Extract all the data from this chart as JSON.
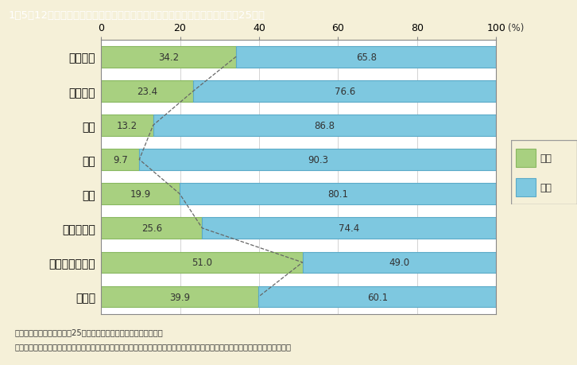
{
  "title": "1－5－12図　専攻分野別に見た大学等の研究本務者の割合（男女別）（平成25年）",
  "categories": [
    "人文科学",
    "社会科学",
    "理学",
    "工学",
    "農学",
    "医学・歯学",
    "薬学・看護学等",
    "その他"
  ],
  "female_values": [
    34.2,
    23.4,
    13.2,
    9.7,
    19.9,
    25.6,
    51.0,
    39.9
  ],
  "male_values": [
    65.8,
    76.6,
    86.8,
    90.3,
    80.1,
    74.4,
    49.0,
    60.1
  ],
  "female_color": "#a8d080",
  "male_color": "#7ec8e0",
  "female_edge_color": "#88b860",
  "male_edge_color": "#5aaac8",
  "background_color": "#f5f0d8",
  "chart_bg_color": "#ffffff",
  "title_bg_color": "#8b7d6b",
  "title_text_color": "#ffffff",
  "footnote1": "（備考）１．総務省「平成25年科学技術研究調査報告」より作成。",
  "footnote2": "　　　　２．大学等：大学の学部（大学院の研究科を含む），短期大学，高等専門学校，大学附置研究所，大学共同利用機関等。",
  "legend_female": "女性",
  "legend_male": "男性",
  "xticks": [
    0,
    20,
    40,
    60,
    80,
    100
  ],
  "xlabel_extra": "(%)"
}
